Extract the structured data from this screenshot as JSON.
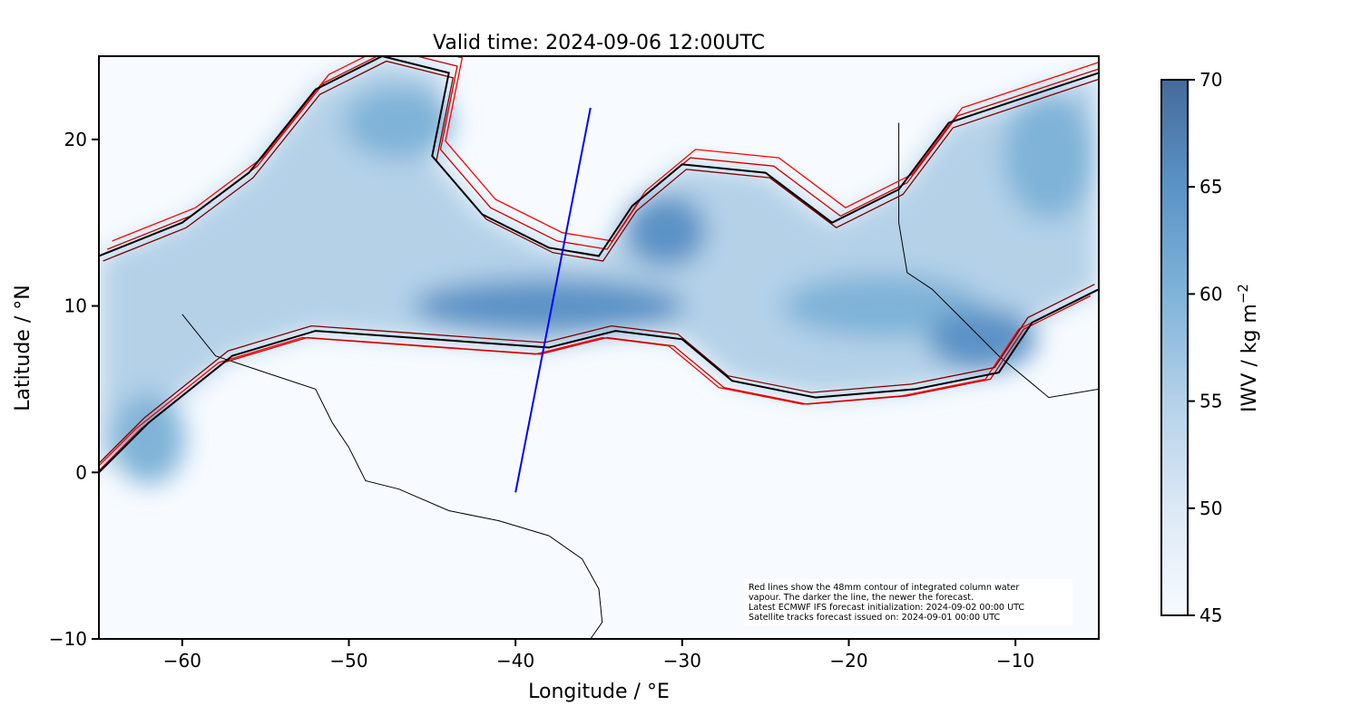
{
  "title": "Valid time: 2024-09-06 12:00UTC",
  "xlabel": "Longitude / °E",
  "ylabel": "Latitude / °N",
  "xlim": [
    -65,
    -5
  ],
  "ylim": [
    -10,
    25
  ],
  "xticks": [
    -60,
    -50,
    -40,
    -30,
    -20,
    -10
  ],
  "yticks": [
    -10,
    0,
    10,
    20
  ],
  "xtick_labels": [
    "−60",
    "−50",
    "−40",
    "−30",
    "−20",
    "−10"
  ],
  "ytick_labels": [
    "−10",
    "0",
    "10",
    "20"
  ],
  "colorbar": {
    "label": "IWV / kg m",
    "label_sup": "−2",
    "range": [
      45,
      70
    ],
    "ticks": [
      45,
      50,
      55,
      60,
      65,
      70
    ],
    "colormap": "Blues",
    "colors": [
      "#f7fbff",
      "#dce8f5",
      "#b4d1e8",
      "#7fb3d8",
      "#5b93c6",
      "#456a9a"
    ]
  },
  "note": {
    "line1": "Red lines show the 48mm contour of integrated column water",
    "line2": "vapour. The darker the line, the newer the forecast.",
    "line3": "Latest ECMWF IFS forecast initialization: 2024-09-02 00:00 UTC",
    "line4": "Satellite tracks forecast issued on: 2024-09-01 00:00 UTC"
  },
  "satellite_track": {
    "color": "#0000ff",
    "points": [
      [
        -40.0,
        -1.2
      ],
      [
        -35.5,
        21.9
      ]
    ]
  },
  "contour_colors": [
    "#ff0000",
    "#cc0000",
    "#800000",
    "#000000"
  ]
}
